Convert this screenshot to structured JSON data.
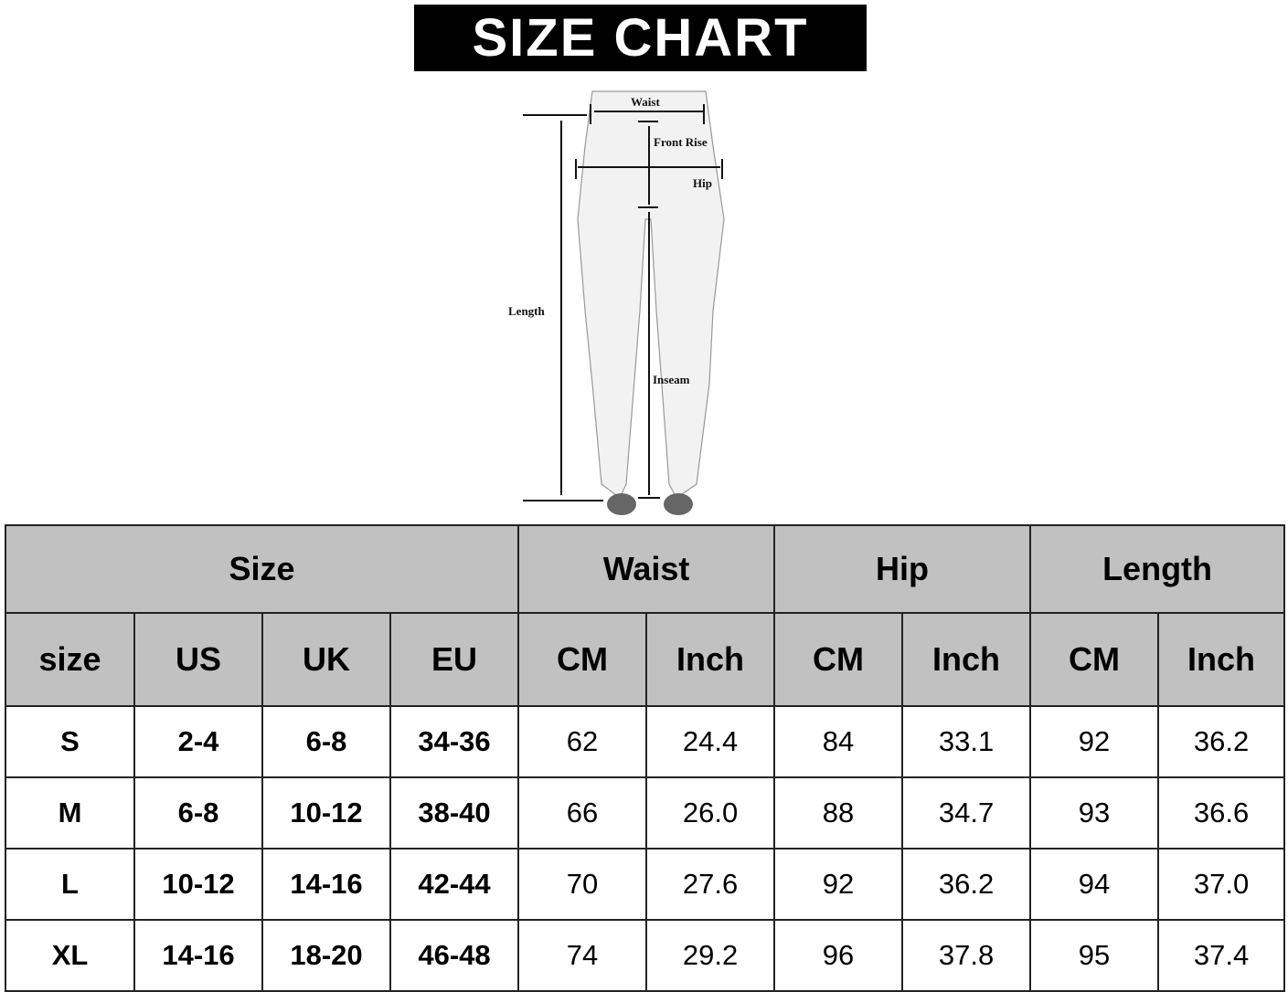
{
  "title": "SIZE CHART",
  "diagram": {
    "labels": {
      "waist": "Waist",
      "front_rise": "Front Rise",
      "hip": "Hip",
      "length": "Length",
      "inseam": "Inseam"
    }
  },
  "table": {
    "groups": [
      "Size",
      "Waist",
      "Hip",
      "Length"
    ],
    "columns": [
      "size",
      "US",
      "UK",
      "EU",
      "CM",
      "Inch",
      "CM",
      "Inch",
      "CM",
      "Inch"
    ],
    "rows": [
      [
        "S",
        "2-4",
        "6-8",
        "34-36",
        "62",
        "24.4",
        "84",
        "33.1",
        "92",
        "36.2"
      ],
      [
        "M",
        "6-8",
        "10-12",
        "38-40",
        "66",
        "26.0",
        "88",
        "34.7",
        "93",
        "36.6"
      ],
      [
        "L",
        "10-12",
        "14-16",
        "42-44",
        "70",
        "27.6",
        "92",
        "36.2",
        "94",
        "37.0"
      ],
      [
        "XL",
        "14-16",
        "18-20",
        "46-48",
        "74",
        "29.2",
        "96",
        "37.8",
        "95",
        "37.4"
      ]
    ]
  },
  "colors": {
    "header_bg": "#c1c1c1",
    "title_bg": "#000000",
    "title_text": "#ffffff"
  }
}
